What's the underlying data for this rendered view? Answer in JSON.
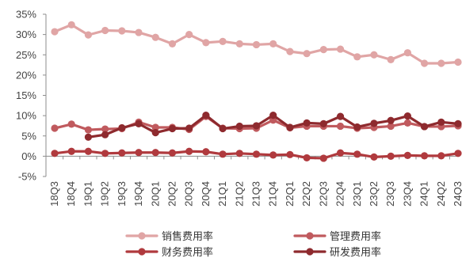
{
  "chart_data": {
    "type": "line",
    "title": "",
    "xlabel": "",
    "ylabel": "",
    "ylim": [
      -5,
      35
    ],
    "yticks": [
      -5,
      0,
      5,
      10,
      15,
      20,
      25,
      30,
      35
    ],
    "ytick_labels": [
      "-5%",
      "0%",
      "5%",
      "10%",
      "15%",
      "20%",
      "25%",
      "30%",
      "35%"
    ],
    "categories": [
      "18Q3",
      "18Q4",
      "19Q1",
      "19Q2",
      "19Q3",
      "19Q4",
      "20Q1",
      "20Q2",
      "20Q3",
      "20Q4",
      "21Q1",
      "21Q2",
      "21Q3",
      "21Q4",
      "22Q1",
      "22Q2",
      "22Q3",
      "22Q4",
      "23Q1",
      "23Q2",
      "23Q3",
      "23Q4",
      "24Q1",
      "24Q2",
      "24Q3"
    ],
    "grid": false,
    "legend_position": "bottom",
    "series": [
      {
        "name": "销售费用率",
        "color": "#E0A5A5",
        "values": [
          30.7,
          32.4,
          29.9,
          31.0,
          30.9,
          30.5,
          29.3,
          27.7,
          30.0,
          28.0,
          28.3,
          27.7,
          27.5,
          27.7,
          25.8,
          25.3,
          26.3,
          26.4,
          24.5,
          25.0,
          23.8,
          25.5,
          22.9,
          22.9,
          23.2
        ]
      },
      {
        "name": "管理费用率",
        "color": "#C05A5E",
        "values": [
          6.9,
          7.9,
          6.5,
          6.7,
          6.8,
          8.4,
          7.1,
          7.1,
          6.6,
          9.8,
          6.9,
          6.8,
          6.9,
          8.9,
          7.0,
          7.4,
          7.4,
          7.4,
          6.9,
          7.1,
          7.4,
          8.2,
          7.3,
          7.3,
          7.5
        ]
      },
      {
        "name": "财务费用率",
        "color": "#B03A3E",
        "values": [
          0.7,
          1.2,
          1.2,
          0.7,
          0.8,
          0.9,
          0.9,
          0.8,
          1.2,
          1.1,
          0.5,
          0.7,
          0.5,
          0.3,
          0.4,
          -0.4,
          -0.5,
          0.8,
          0.5,
          -0.2,
          0.0,
          0.2,
          0.1,
          0.1,
          0.7
        ]
      },
      {
        "name": "研发费用率",
        "color": "#8E2A2E",
        "values": [
          null,
          null,
          4.7,
          5.3,
          7.0,
          8.0,
          5.8,
          6.8,
          6.9,
          10.1,
          6.8,
          7.4,
          7.5,
          10.1,
          7.1,
          8.2,
          8.0,
          9.8,
          7.2,
          8.1,
          8.8,
          9.9,
          7.3,
          8.4,
          8.0
        ]
      }
    ]
  }
}
